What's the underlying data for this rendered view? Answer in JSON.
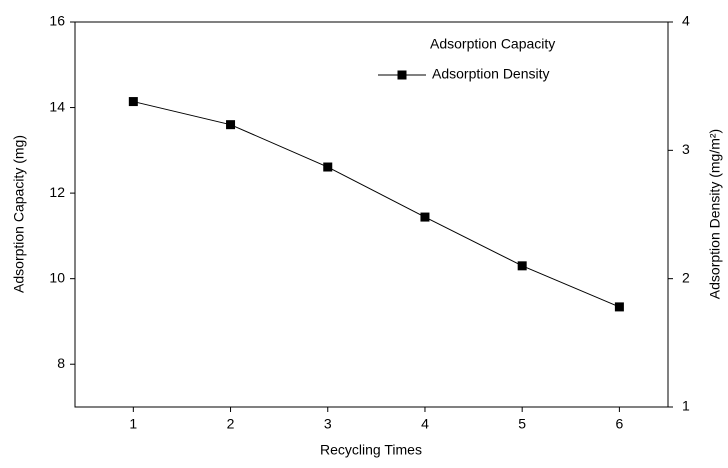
{
  "chart_data": {
    "type": "line",
    "x_label": "Recycling Times",
    "y_label": "Adsorption Capacity (mg)",
    "y2_label": "Adsorption Density (mg/m²)",
    "x": [
      1,
      2,
      3,
      4,
      5,
      6
    ],
    "xlim": [
      0.4,
      6.5
    ],
    "xticks": [
      1,
      2,
      3,
      4,
      5,
      6
    ],
    "ylim": [
      7,
      16
    ],
    "yticks": [
      8,
      10,
      12,
      14,
      16
    ],
    "y2lim": [
      1,
      4
    ],
    "y2ticks": [
      1,
      2,
      3,
      4
    ],
    "legend": "upper right",
    "series": [
      {
        "name": "Adsorption Capacity",
        "color": "#000000",
        "marker": "none",
        "line": false,
        "values": [
          14.15,
          13.6,
          12.6,
          11.45,
          10.3,
          9.35
        ]
      },
      {
        "name": "Adsorption Density",
        "color": "#000000",
        "marker": "square",
        "line": true,
        "axis": "y2",
        "values": [
          3.38,
          3.2,
          2.87,
          2.48,
          2.1,
          1.78
        ]
      }
    ]
  }
}
